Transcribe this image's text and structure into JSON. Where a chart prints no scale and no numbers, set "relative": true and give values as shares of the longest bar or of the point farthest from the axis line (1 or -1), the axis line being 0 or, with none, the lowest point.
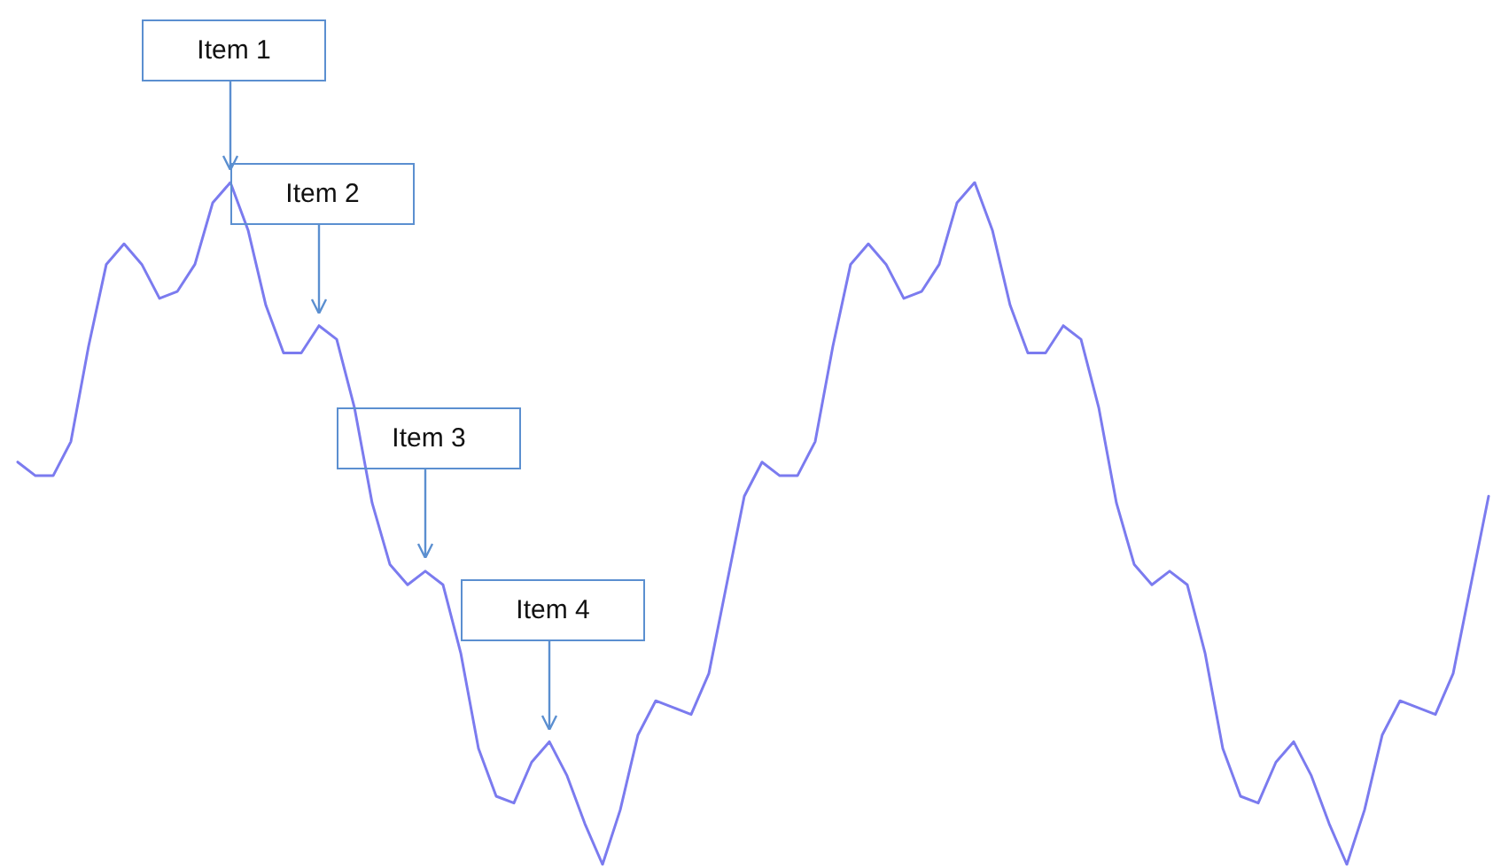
{
  "chart_data": {
    "type": "line",
    "relative": true,
    "color": "#7b7bef",
    "marker": "none",
    "grid": false,
    "categories": [
      null,
      null,
      null,
      null,
      null,
      null,
      null,
      null,
      null,
      null,
      null,
      null,
      null,
      null,
      null,
      null,
      null,
      null,
      null,
      null,
      null,
      null,
      null,
      null,
      null,
      null,
      null,
      null,
      null,
      null,
      null,
      null,
      null,
      null,
      null,
      null,
      null,
      null,
      null,
      null,
      null,
      null,
      null,
      null,
      null,
      null,
      null,
      null,
      null,
      null,
      null,
      null,
      null,
      null,
      null,
      null,
      null,
      null,
      null,
      null,
      null,
      null,
      null,
      null,
      null,
      null,
      null,
      null,
      null,
      null,
      null,
      null,
      null,
      null,
      null,
      null,
      null,
      null,
      null,
      null,
      null,
      null,
      null,
      null
    ],
    "values": [
      0.59,
      0.57,
      0.57,
      0.62,
      0.76,
      0.88,
      0.91,
      0.88,
      0.83,
      0.84,
      0.88,
      0.97,
      1,
      0.93,
      0.82,
      0.75,
      0.75,
      0.79,
      0.77,
      0.67,
      0.53,
      0.44,
      0.41,
      0.43,
      0.41,
      0.31,
      0.17,
      0.1,
      0.09,
      0.15,
      0.18,
      0.13,
      0.06,
      0,
      0.08,
      0.19,
      0.24,
      0.23,
      0.22,
      0.28,
      0.41,
      0.54,
      0.59,
      0.57,
      0.57,
      0.62,
      0.76,
      0.88,
      0.91,
      0.88,
      0.83,
      0.84,
      0.88,
      0.97,
      1,
      0.93,
      0.82,
      0.75,
      0.75,
      0.79,
      0.77,
      0.67,
      0.53,
      0.44,
      0.41,
      0.43,
      0.41,
      0.31,
      0.17,
      0.1,
      0.09,
      0.15,
      0.18,
      0.13,
      0.06,
      0,
      0.08,
      0.19,
      0.24,
      0.23,
      0.22,
      0.28,
      0.41,
      0.54
    ],
    "annotations": [
      {
        "text": "Item 1",
        "y": 1
      },
      {
        "text": "Item 2",
        "y": 0.79
      },
      {
        "text": "Item 3",
        "y": 0.43
      },
      {
        "text": "Item 4",
        "y": 0.18
      }
    ]
  }
}
